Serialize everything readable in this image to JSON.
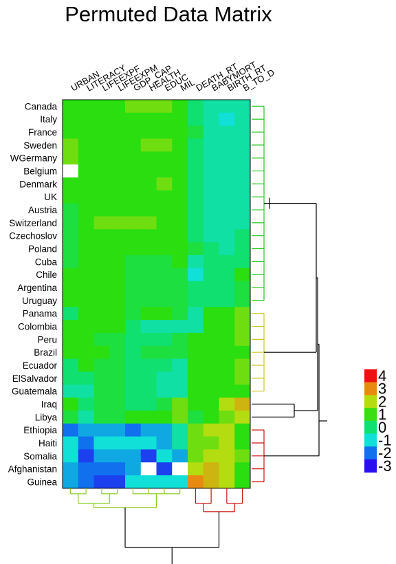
{
  "chart_data": {
    "type": "heatmap",
    "title": "Permuted Data Matrix",
    "rows": [
      "Canada",
      "Italy",
      "France",
      "Sweden",
      "WGermany",
      "Belgium",
      "Denmark",
      "UK",
      "Austria",
      "Switzerland",
      "Czechoslov",
      "Poland",
      "Cuba",
      "Chile",
      "Argentina",
      "Uruguay",
      "Panama",
      "Colombia",
      "Peru",
      "Brazil",
      "Ecuador",
      "ElSalvador",
      "Guatemala",
      "Iraq",
      "Libya",
      "Ethiopia",
      "Haiti",
      "Somalia",
      "Afghanistan",
      "Guinea"
    ],
    "columns": [
      "URBAN",
      "LITERACY",
      "LIFEEXPF",
      "LIFEEXPM",
      "GDP_CAP",
      "HEALTH",
      "EDUC",
      "MIL",
      "DEATH_RT",
      "BABYMORT",
      "BIRTH_RT",
      "B_TO_D"
    ],
    "values": [
      [
        1,
        1,
        1,
        1,
        1.5,
        1.5,
        1.5,
        1,
        0,
        -0.5,
        -0.5,
        -0.5
      ],
      [
        1,
        1,
        1,
        1,
        1,
        1,
        1,
        1,
        0,
        -0.5,
        -1,
        -0.5
      ],
      [
        1,
        1,
        1,
        1,
        1,
        1,
        1,
        1,
        0.5,
        -0.5,
        -0.5,
        -0.5
      ],
      [
        1.5,
        1,
        1,
        1,
        1,
        1.5,
        1.5,
        1,
        0,
        -0.5,
        -0.5,
        -0.5
      ],
      [
        1.5,
        1,
        1,
        1,
        1,
        1,
        1,
        1,
        0,
        -0.5,
        -0.5,
        -0.5
      ],
      [
        null,
        1,
        1,
        1,
        1,
        1,
        1,
        1,
        0,
        -0.5,
        -0.5,
        -0.5
      ],
      [
        1,
        1,
        1,
        1,
        1,
        1,
        1.5,
        1,
        0,
        -0.5,
        -0.5,
        -0.5
      ],
      [
        1,
        1,
        1,
        1,
        1,
        1,
        1,
        1,
        0,
        -0.5,
        -0.5,
        -0.5
      ],
      [
        0.5,
        1,
        1,
        1,
        1,
        1,
        1,
        1,
        0,
        -0.5,
        -0.5,
        -0.5
      ],
      [
        0.5,
        1,
        1.5,
        1.5,
        1.5,
        1.5,
        1,
        1,
        0,
        -0.5,
        -0.5,
        -0.5
      ],
      [
        0.5,
        1,
        1,
        1,
        1,
        1,
        1,
        1,
        0,
        -0.5,
        -0.5,
        0
      ],
      [
        0.5,
        1,
        1,
        1,
        1,
        1,
        1,
        1,
        0.5,
        0,
        -0.5,
        0
      ],
      [
        0.5,
        1,
        1,
        1,
        0.5,
        0.5,
        0.5,
        1,
        -0.5,
        0,
        0,
        0
      ],
      [
        1,
        1,
        1,
        1,
        0.5,
        0.5,
        0.5,
        0.5,
        -1,
        0,
        0,
        1
      ],
      [
        1,
        1,
        1,
        1,
        0.5,
        0.5,
        0.5,
        0.5,
        0,
        0,
        0,
        0.5
      ],
      [
        1,
        1,
        1,
        1,
        0.5,
        0.5,
        0.5,
        0.5,
        0,
        0,
        0,
        0.5
      ],
      [
        0,
        1,
        1,
        1,
        0.5,
        1,
        1,
        0.5,
        -0.5,
        1,
        1,
        1.5
      ],
      [
        1,
        1,
        1,
        1,
        0,
        -0.5,
        -0.5,
        -0.5,
        -0.5,
        1,
        1,
        1.5
      ],
      [
        1,
        1,
        0.5,
        0.5,
        0,
        0,
        0,
        0.5,
        1,
        1,
        1,
        1.5
      ],
      [
        1,
        1,
        1,
        0.5,
        0,
        0.5,
        0.5,
        0.5,
        1,
        1,
        1,
        1
      ],
      [
        0,
        1,
        0.5,
        0.5,
        0,
        0,
        0,
        -0.5,
        1,
        1,
        1,
        1.5
      ],
      [
        0,
        0,
        0.5,
        0.5,
        0,
        0,
        -0.5,
        -0.5,
        1,
        1,
        1,
        1.5
      ],
      [
        -0.5,
        -0.5,
        0.5,
        0.5,
        0,
        0,
        -0.5,
        -0.5,
        1,
        1,
        1,
        1
      ],
      [
        1,
        0,
        0.5,
        0.5,
        0,
        0,
        0.5,
        1.5,
        1,
        1,
        2,
        2.5
      ],
      [
        0.5,
        -0.5,
        0.5,
        0.5,
        1,
        1,
        1,
        1.5,
        0.5,
        1,
        1.5,
        2
      ],
      [
        -2,
        -1.5,
        -1.5,
        -1.5,
        -2,
        -1.5,
        -1.5,
        -0.5,
        1.5,
        2,
        2,
        1
      ],
      [
        -1,
        -2,
        -1,
        -1,
        -1,
        -1,
        -1.5,
        -0.5,
        1.5,
        1.5,
        2,
        1
      ],
      [
        -1,
        -2.5,
        -1.5,
        -1.5,
        -1.5,
        -2.5,
        -1,
        -1.5,
        1.5,
        2,
        2,
        1.5
      ],
      [
        -1.5,
        -2,
        -2,
        -2,
        -1.5,
        null,
        -2.5,
        null,
        2,
        2.5,
        2,
        1
      ],
      [
        -1.5,
        -2,
        -2.5,
        -2.5,
        -1,
        -1,
        -1,
        -1,
        3,
        2.5,
        2,
        1
      ]
    ],
    "color_scale": {
      "ticks": [
        "4",
        "3",
        "2",
        "1",
        "0",
        "-1",
        "-2",
        "-3"
      ],
      "colors": [
        "#ee1111",
        "#e98a10",
        "#b3dd10",
        "#3ade12",
        "#10e070",
        "#10e0d8",
        "#1070ee",
        "#2a10ee"
      ],
      "missing": "#ffffff"
    },
    "row_clusters": [
      {
        "rows": [
          0,
          15
        ],
        "color": "#1ec81e"
      },
      {
        "rows": [
          16,
          22
        ],
        "color": "#c8c81e"
      },
      {
        "rows": [
          23,
          24
        ],
        "color": "#000000"
      },
      {
        "rows": [
          25,
          29
        ],
        "color": "#cc1111"
      }
    ],
    "column_clusters": [
      {
        "cols": [
          0,
          7
        ],
        "color": "#88cc22"
      },
      {
        "cols": [
          8,
          11
        ],
        "color": "#cc1111"
      }
    ]
  }
}
